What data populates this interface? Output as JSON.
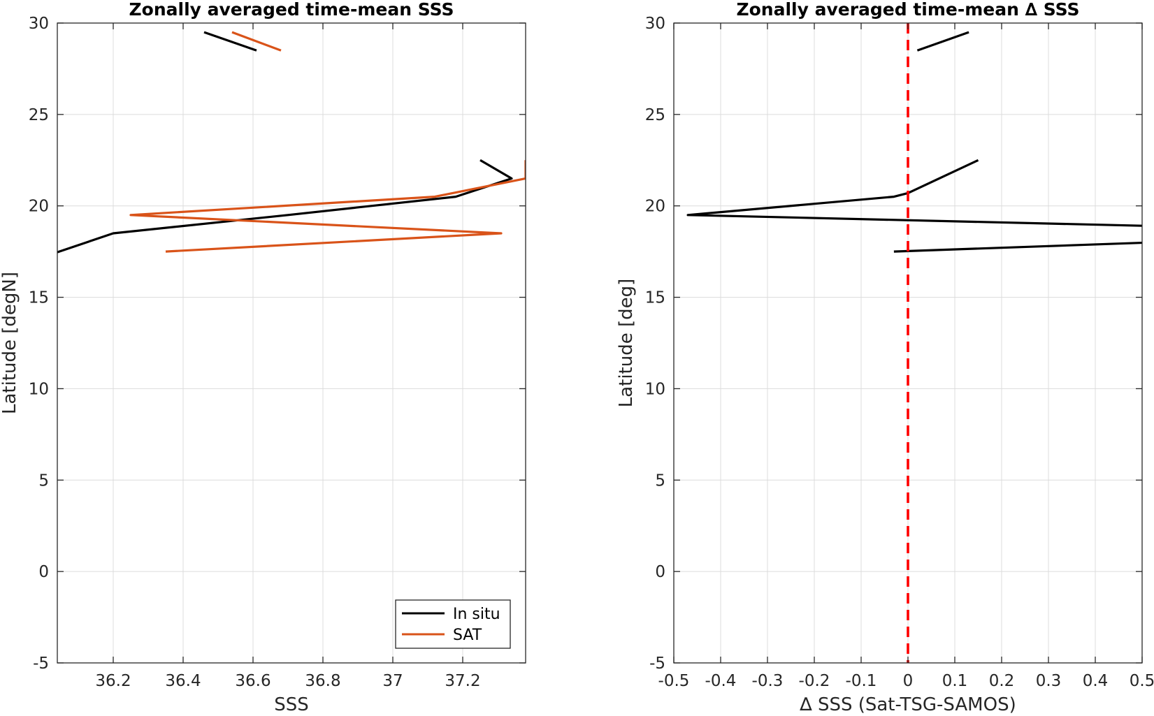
{
  "chart_data": [
    {
      "type": "line",
      "title": "Zonally averaged time-mean SSS",
      "xlabel": "SSS",
      "ylabel": "Latitude [degN]",
      "xlim": [
        36.04,
        37.38
      ],
      "ylim": [
        -5,
        30
      ],
      "xticks": [
        36.2,
        36.4,
        36.6,
        36.8,
        37,
        37.2
      ],
      "xtick_labels": [
        "36.2",
        "36.4",
        "36.6",
        "36.8",
        "37",
        "37.2"
      ],
      "yticks": [
        -5,
        0,
        5,
        10,
        15,
        20,
        25,
        30
      ],
      "ytick_labels": [
        "-5",
        "0",
        "5",
        "10",
        "15",
        "20",
        "25",
        "30"
      ],
      "grid": true,
      "legend": {
        "position": "bottom-right",
        "entries": [
          "In situ",
          "SAT"
        ]
      },
      "series": [
        {
          "name": "In situ",
          "color": "#000000",
          "segments": [
            [
              [
                36.03,
                17.4
              ],
              [
                36.2,
                18.5
              ],
              [
                36.7,
                19.5
              ],
              [
                37.18,
                20.5
              ],
              [
                37.34,
                21.5
              ],
              [
                37.25,
                22.5
              ]
            ],
            [
              [
                36.46,
                29.5
              ],
              [
                36.61,
                28.5
              ]
            ]
          ]
        },
        {
          "name": "SAT",
          "color": "#d95319",
          "segments": [
            [
              [
                36.35,
                17.5
              ],
              [
                37.31,
                18.5
              ],
              [
                36.25,
                19.5
              ],
              [
                37.12,
                20.5
              ],
              [
                37.38,
                21.5
              ],
              [
                37.38,
                22.5
              ]
            ],
            [
              [
                36.54,
                29.5
              ],
              [
                36.68,
                28.5
              ]
            ]
          ]
        }
      ]
    },
    {
      "type": "line",
      "title": "Zonally averaged time-mean ∆ SSS",
      "xlabel": "∆ SSS (Sat-TSG-SAMOS)",
      "ylabel": "Latitude [deg]",
      "xlim": [
        -0.5,
        0.5
      ],
      "ylim": [
        -5,
        30
      ],
      "xticks": [
        -0.5,
        -0.4,
        -0.3,
        -0.2,
        -0.1,
        0,
        0.1,
        0.2,
        0.3,
        0.4,
        0.5
      ],
      "xtick_labels": [
        "-0.5",
        "-0.4",
        "-0.3",
        "-0.2",
        "-0.1",
        "0",
        "0.1",
        "0.2",
        "0.3",
        "0.4",
        "0.5"
      ],
      "yticks": [
        -5,
        0,
        5,
        10,
        15,
        20,
        25,
        30
      ],
      "ytick_labels": [
        "-5",
        "0",
        "5",
        "10",
        "15",
        "20",
        "25",
        "30"
      ],
      "grid": true,
      "reference_line": {
        "x": 0,
        "color": "#ff0000",
        "style": "dashed"
      },
      "series": [
        {
          "color": "#000000",
          "segments": [
            [
              [
                -0.03,
                17.5
              ],
              [
                0.52,
                18.0
              ]
            ],
            [
              [
                0.52,
                18.9
              ],
              [
                -0.47,
                19.5
              ],
              [
                -0.03,
                20.5
              ],
              [
                0.0,
                20.7
              ],
              [
                0.15,
                22.5
              ]
            ],
            [
              [
                0.02,
                28.5
              ],
              [
                0.13,
                29.5
              ]
            ]
          ]
        }
      ]
    }
  ]
}
